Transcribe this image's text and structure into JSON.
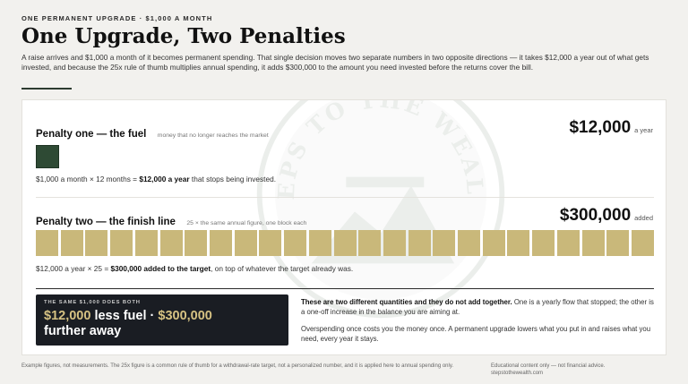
{
  "header": {
    "eyebrow": "ONE PERMANENT UPGRADE · $1,000 A MONTH",
    "title": "One Upgrade, Two Penalties",
    "intro": "A raise arrives and $1,000 a month of it becomes permanent spending. That single decision moves two separate numbers in two opposite directions — it takes $12,000 a year out of what gets invested, and because the 25x rule of thumb multiplies annual spending, it adds $300,000 to the amount you need invested before the returns cover the bill."
  },
  "watermark": {
    "icon": "steps-to-the-wealth-logo",
    "text": "STEPS TO THE WEALTH"
  },
  "penalty_one": {
    "title": "Penalty one — the fuel",
    "subtitle": "money that no longer reaches the market",
    "figure": "$12,000",
    "unit": "a year",
    "blocks": 1,
    "equation_prefix": "$1,000 a month × 12 months = ",
    "equation_bold": "$12,000 a year",
    "equation_suffix": " that stops being invested."
  },
  "penalty_two": {
    "title": "Penalty two — the finish line",
    "subtitle": "25 × the same annual figure, one block each",
    "figure": "$300,000",
    "unit": "added",
    "blocks": 25,
    "equation_prefix": "$12,000 a year × 25 = ",
    "equation_bold": "$300,000 added to the target",
    "equation_suffix": ", on top of whatever the target already was."
  },
  "summary": {
    "label": "THE SAME $1,000 DOES BOTH",
    "fuel_amount": "$12,000",
    "fuel_text": " less fuel",
    "separator": " · ",
    "target_amount": "$300,000",
    "target_text": "further away"
  },
  "explanation": {
    "p1_bold": "These are two different quantities and they do not add together.",
    "p1_rest": " One is a yearly flow that stopped; the other is a one-off increase in the balance you are aiming at.",
    "p2": "Overspending once costs you the money once. A permanent upgrade lowers what you put in and raises what you need, every year it stays."
  },
  "footer": {
    "note": "Example figures, not measurements. The 25x figure is a common rule of thumb for a withdrawal-rate target, not a personalized number, and it is applied here to annual spending only.",
    "disclaimer": "Educational content only — not financial advice.",
    "site": "stepstothewealth.com"
  },
  "colors": {
    "fuel_block": "#2e4a34",
    "target_block": "#c9b87a",
    "summary_bg": "#1a1d23",
    "summary_accent": "#d6c283"
  }
}
